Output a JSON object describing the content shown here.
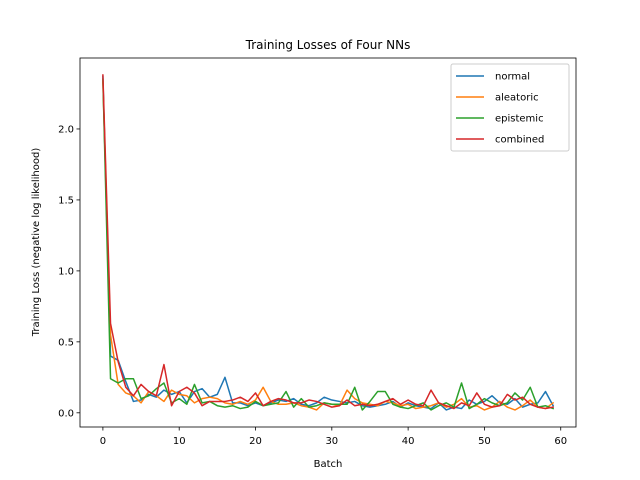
{
  "chart_data": {
    "type": "line",
    "title": "Training Losses of Four NNs",
    "xlabel": "Batch",
    "ylabel": "Training Loss (negative log likelihood)",
    "xlim": [
      -3,
      62
    ],
    "ylim": [
      -0.1,
      2.5
    ],
    "xticks": [
      0,
      10,
      20,
      30,
      40,
      50,
      60
    ],
    "yticks": [
      0.0,
      0.5,
      1.0,
      1.5,
      2.0
    ],
    "ytick_labels": [
      "0.0",
      "0.5",
      "1.0",
      "1.5",
      "2.0"
    ],
    "legend_position": "top-right",
    "x": [
      0,
      1,
      2,
      3,
      4,
      5,
      6,
      7,
      8,
      9,
      10,
      11,
      12,
      13,
      14,
      15,
      16,
      17,
      18,
      19,
      20,
      21,
      22,
      23,
      24,
      25,
      26,
      27,
      28,
      29,
      30,
      31,
      32,
      33,
      34,
      35,
      36,
      37,
      38,
      39,
      40,
      41,
      42,
      43,
      44,
      45,
      46,
      47,
      48,
      49,
      50,
      51,
      52,
      53,
      54,
      55,
      56,
      57,
      58,
      59
    ],
    "series": [
      {
        "name": "normal",
        "color": "#1f77b4",
        "values": [
          2.37,
          0.4,
          0.37,
          0.22,
          0.08,
          0.09,
          0.13,
          0.11,
          0.16,
          0.13,
          0.15,
          0.07,
          0.15,
          0.17,
          0.11,
          0.13,
          0.25,
          0.07,
          0.07,
          0.05,
          0.07,
          0.05,
          0.07,
          0.09,
          0.08,
          0.1,
          0.06,
          0.05,
          0.07,
          0.11,
          0.09,
          0.08,
          0.07,
          0.08,
          0.05,
          0.04,
          0.05,
          0.06,
          0.08,
          0.04,
          0.07,
          0.05,
          0.04,
          0.03,
          0.07,
          0.02,
          0.04,
          0.03,
          0.09,
          0.06,
          0.08,
          0.12,
          0.07,
          0.06,
          0.1,
          0.04,
          0.06,
          0.07,
          0.15,
          0.05
        ]
      },
      {
        "name": "aleatoric",
        "color": "#ff7f0e",
        "values": [
          2.33,
          0.55,
          0.2,
          0.14,
          0.12,
          0.07,
          0.15,
          0.12,
          0.08,
          0.16,
          0.13,
          0.12,
          0.07,
          0.1,
          0.11,
          0.1,
          0.07,
          0.06,
          0.08,
          0.06,
          0.09,
          0.18,
          0.08,
          0.06,
          0.06,
          0.07,
          0.05,
          0.04,
          0.02,
          0.07,
          0.06,
          0.05,
          0.16,
          0.1,
          0.07,
          0.06,
          0.05,
          0.08,
          0.07,
          0.05,
          0.06,
          0.03,
          0.04,
          0.05,
          0.07,
          0.04,
          0.06,
          0.1,
          0.04,
          0.05,
          0.02,
          0.04,
          0.08,
          0.04,
          0.02,
          0.05,
          0.09,
          0.04,
          0.03,
          0.07
        ]
      },
      {
        "name": "epistemic",
        "color": "#2ca02c",
        "values": [
          2.35,
          0.24,
          0.21,
          0.24,
          0.24,
          0.1,
          0.12,
          0.17,
          0.21,
          0.07,
          0.1,
          0.06,
          0.2,
          0.07,
          0.08,
          0.05,
          0.04,
          0.05,
          0.03,
          0.04,
          0.08,
          0.05,
          0.06,
          0.07,
          0.15,
          0.04,
          0.1,
          0.04,
          0.05,
          0.07,
          0.06,
          0.06,
          0.06,
          0.18,
          0.02,
          0.08,
          0.15,
          0.15,
          0.06,
          0.04,
          0.03,
          0.05,
          0.07,
          0.02,
          0.05,
          0.07,
          0.04,
          0.21,
          0.03,
          0.06,
          0.1,
          0.07,
          0.05,
          0.07,
          0.14,
          0.09,
          0.18,
          0.04,
          0.05,
          0.03
        ]
      },
      {
        "name": "combined",
        "color": "#d62728",
        "values": [
          2.38,
          0.63,
          0.36,
          0.18,
          0.12,
          0.2,
          0.15,
          0.12,
          0.34,
          0.05,
          0.15,
          0.18,
          0.14,
          0.05,
          0.08,
          0.08,
          0.08,
          0.09,
          0.11,
          0.08,
          0.14,
          0.05,
          0.08,
          0.1,
          0.09,
          0.07,
          0.07,
          0.09,
          0.08,
          0.06,
          0.04,
          0.05,
          0.09,
          0.05,
          0.06,
          0.05,
          0.06,
          0.08,
          0.1,
          0.06,
          0.09,
          0.06,
          0.05,
          0.16,
          0.07,
          0.05,
          0.03,
          0.07,
          0.05,
          0.14,
          0.06,
          0.04,
          0.05,
          0.13,
          0.09,
          0.11,
          0.06,
          0.04,
          0.03,
          0.04
        ]
      }
    ]
  }
}
